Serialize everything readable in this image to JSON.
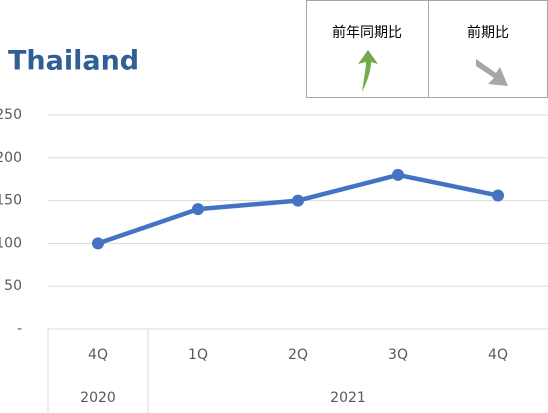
{
  "chart_data": {
    "type": "line",
    "title": "Thailand",
    "indicators": [
      {
        "label": "前年同期比"
      },
      {
        "label": "前期比"
      }
    ],
    "categories": [
      "4Q",
      "1Q",
      "2Q",
      "3Q",
      "4Q"
    ],
    "groups": [
      {
        "label": "2020",
        "span": 1
      },
      {
        "label": "2021",
        "span": 4
      }
    ],
    "series": [
      {
        "name": "Thailand",
        "color": "#4472c4",
        "values": [
          100,
          140,
          150,
          180,
          156
        ]
      }
    ],
    "ylim": [
      0,
      250
    ],
    "yticks": [
      {
        "value": 0,
        "label": "-"
      },
      50,
      100,
      150,
      200,
      250
    ],
    "grid": true
  }
}
